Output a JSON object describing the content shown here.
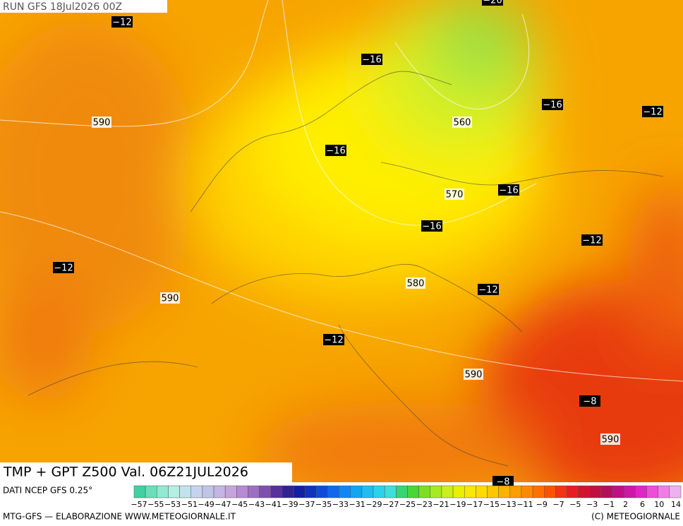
{
  "header": {
    "run": "RUN GFS 18Jul2026 00Z"
  },
  "title": "TMP + GPT Z500 Val. 06Z21JUL2026",
  "source": "DATI NCEP GFS 0.25°",
  "footer_left": "MTG-GFS — ELABORAZIONE WWW.METEOGIORNALE.IT",
  "footer_right": "(C) METEOGIORNALE",
  "temperature_labels": [
    "−20",
    "−12",
    "−16",
    "−16",
    "−12",
    "−16",
    "−16",
    "−16",
    "−12",
    "−12",
    "−12",
    "−12",
    "−8",
    "−8"
  ],
  "height_labels": [
    "590",
    "560",
    "570",
    "580",
    "590",
    "590",
    "590"
  ],
  "colorbar_labels": [
    "−57",
    "−55",
    "−53",
    "−51",
    "−49",
    "−47",
    "−45",
    "−43",
    "−41",
    "−39",
    "−37",
    "−35",
    "−33",
    "−31",
    "−29",
    "−27",
    "−25",
    "−23",
    "−21",
    "−19",
    "−17",
    "−15",
    "−13",
    "−11",
    "−9",
    "−7",
    "−5",
    "−3",
    "−1",
    "2",
    "6",
    "10",
    "14"
  ]
}
